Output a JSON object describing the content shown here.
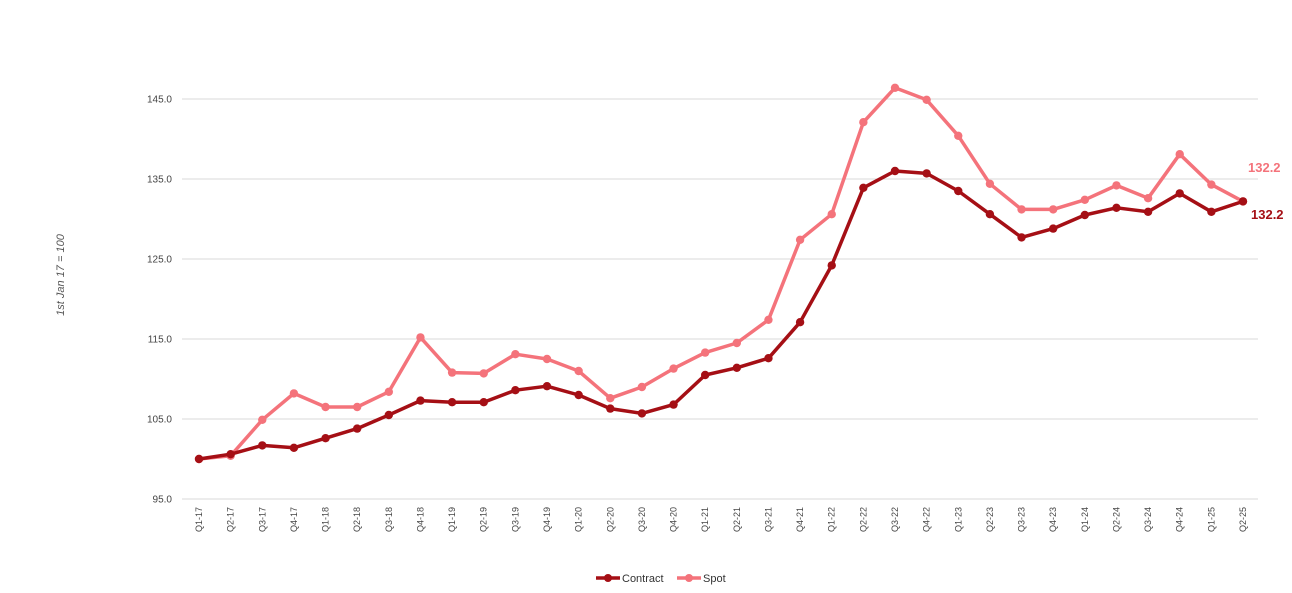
{
  "chart_data": {
    "type": "line",
    "title": "",
    "xlabel": "",
    "ylabel": "1st Jan 17 = 100",
    "ylim": [
      95,
      147.5
    ],
    "yticks": [
      95.0,
      105.0,
      115.0,
      125.0,
      135.0,
      145.0
    ],
    "ytick_labels": [
      "95.0",
      "105.0",
      "115.0",
      "125.0",
      "135.0",
      "145.0"
    ],
    "grid": true,
    "legend_position": "bottom-center",
    "categories": [
      "Q1-17",
      "Q2-17",
      "Q3-17",
      "Q4-17",
      "Q1-18",
      "Q2-18",
      "Q3-18",
      "Q4-18",
      "Q1-19",
      "Q2-19",
      "Q3-19",
      "Q4-19",
      "Q1-20",
      "Q2-20",
      "Q3-20",
      "Q4-20",
      "Q1-21",
      "Q2-21",
      "Q3-21",
      "Q4-21",
      "Q1-22",
      "Q2-22",
      "Q3-22",
      "Q4-22",
      "Q1-23",
      "Q2-23",
      "Q3-23",
      "Q4-23",
      "Q1-24",
      "Q2-24",
      "Q3-24",
      "Q4-24",
      "Q1-25",
      "Q2-25"
    ],
    "series": [
      {
        "name": "Contract",
        "color": "#a50f15",
        "values": [
          100.0,
          100.6,
          101.7,
          101.4,
          102.6,
          103.8,
          105.5,
          107.3,
          107.1,
          107.1,
          108.6,
          109.1,
          108.0,
          106.3,
          105.7,
          106.8,
          110.5,
          111.4,
          112.6,
          117.1,
          124.2,
          133.9,
          136.0,
          135.7,
          133.5,
          130.6,
          127.7,
          128.8,
          130.5,
          131.4,
          130.9,
          133.2,
          130.9,
          132.2
        ],
        "end_label": "132.2"
      },
      {
        "name": "Spot",
        "color": "#f4737b",
        "values": [
          100.0,
          100.4,
          104.9,
          108.2,
          106.5,
          106.5,
          108.4,
          115.2,
          110.8,
          110.7,
          113.1,
          112.5,
          111.0,
          107.6,
          109.0,
          111.3,
          113.3,
          114.5,
          117.4,
          127.4,
          130.6,
          142.1,
          146.4,
          144.9,
          140.4,
          134.4,
          131.2,
          131.2,
          132.4,
          134.2,
          132.6,
          138.1,
          134.3,
          132.2
        ],
        "end_label": "132.2"
      }
    ]
  }
}
